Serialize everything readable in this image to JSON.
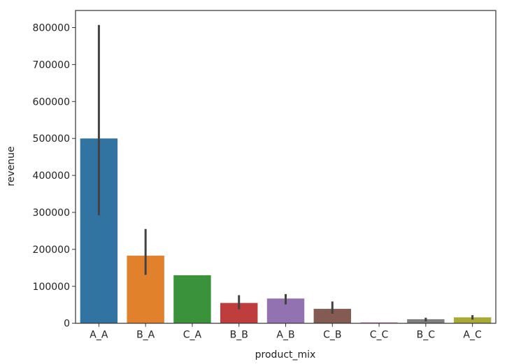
{
  "chart_data": {
    "type": "bar",
    "title": "",
    "xlabel": "product_mix",
    "ylabel": "revenue",
    "categories": [
      "A_A",
      "B_A",
      "C_A",
      "B_B",
      "A_B",
      "C_B",
      "C_C",
      "B_C",
      "A_C"
    ],
    "values": [
      500000,
      183000,
      130000,
      55000,
      67000,
      39000,
      2500,
      11000,
      16000
    ],
    "error_low": [
      292000,
      131000,
      130000,
      38000,
      51000,
      26000,
      2500,
      5000,
      10000
    ],
    "error_high": [
      807000,
      255000,
      130000,
      76000,
      79000,
      59000,
      2500,
      15000,
      22000
    ],
    "ylim": [
      0,
      890000
    ],
    "yticks": [
      0,
      100000,
      200000,
      300000,
      400000,
      500000,
      600000,
      700000,
      800000
    ],
    "grid": false,
    "colors": [
      "#3274a1",
      "#e1812c",
      "#3a923a",
      "#c03d3e",
      "#9372b2",
      "#845b53",
      "#d684bd",
      "#7f7f7f",
      "#a9aa35"
    ],
    "error_color": "#424242"
  }
}
